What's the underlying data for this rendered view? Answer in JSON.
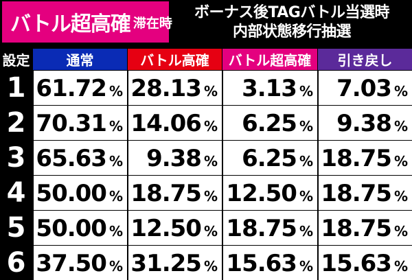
{
  "badge": {
    "main": "バトル超高確",
    "sub": "滞在時"
  },
  "title": {
    "line1": "ボーナス後TAGバトル当選時",
    "line2": "内部状態移行抽選"
  },
  "table": {
    "headers": [
      "設定",
      "通常",
      "バトル高確",
      "バトル超高確",
      "引き戻し"
    ],
    "percent_sign": "%",
    "rows": [
      {
        "setting": "1",
        "values": [
          "61.72",
          "28.13",
          "3.13",
          "7.03"
        ]
      },
      {
        "setting": "2",
        "values": [
          "70.31",
          "14.06",
          "6.25",
          "9.38"
        ]
      },
      {
        "setting": "3",
        "values": [
          "65.63",
          "9.38",
          "6.25",
          "18.75"
        ]
      },
      {
        "setting": "4",
        "values": [
          "50.00",
          "18.75",
          "12.50",
          "18.75"
        ]
      },
      {
        "setting": "5",
        "values": [
          "50.00",
          "12.50",
          "18.75",
          "18.75"
        ]
      },
      {
        "setting": "6",
        "values": [
          "37.50",
          "31.25",
          "15.63",
          "15.63"
        ]
      }
    ]
  },
  "colors": {
    "badge": "#e4007f",
    "header_normal": "#0a2bb5",
    "header_battle_high": "#e60012",
    "header_battle_super": "#e4007f",
    "header_pullback": "#5b2a9a"
  }
}
